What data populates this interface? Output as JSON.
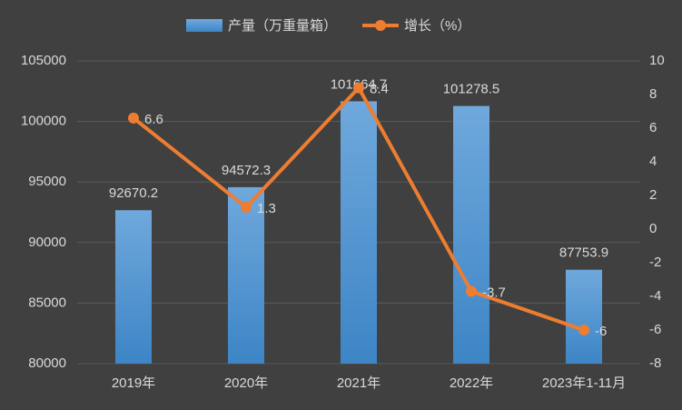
{
  "chart_data": {
    "type": "combo",
    "categories": [
      "2019年",
      "2020年",
      "2021年",
      "2022年",
      "2023年1-11月"
    ],
    "series": [
      {
        "name": "产量（万重量箱）",
        "color": "#5b9bd5",
        "values": [
          92670.2,
          94572.3,
          101664.7,
          101278.5,
          87753.9
        ]
      },
      {
        "name": "增长（%）",
        "color": "#ed7d31",
        "values": [
          6.6,
          1.3,
          8.4,
          -3.7,
          -6
        ],
        "axis": "y2"
      }
    ],
    "ylim": [
      80000,
      105000
    ],
    "yticks": [
      80000,
      85000,
      90000,
      95000,
      100000,
      105000
    ],
    "y2lim": [
      -8,
      10
    ],
    "y2ticks": [
      -8,
      -6,
      -4,
      -2,
      0,
      2,
      4,
      6,
      8,
      10
    ],
    "grid": true
  }
}
